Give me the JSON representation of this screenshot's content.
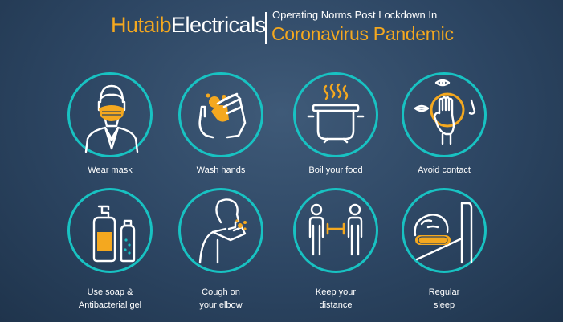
{
  "header": {
    "brand_part1": "Hutaib",
    "brand_part2": "Electricals",
    "subtitle": "Operating Norms Post Lockdown In",
    "subtitle2": "Coronavirus Pandemic"
  },
  "items": [
    {
      "label": "Wear mask",
      "icon": "mask-icon"
    },
    {
      "label": "Wash hands",
      "icon": "wash-hands-icon"
    },
    {
      "label": "Boil your food",
      "icon": "boiling-pot-icon"
    },
    {
      "label": "Avoid contact",
      "icon": "hand-face-icon"
    },
    {
      "label": "Use soap &",
      "label2": "Antibacterial gel",
      "icon": "soap-bottles-icon"
    },
    {
      "label": "Cough on",
      "label2": "your elbow",
      "icon": "cough-elbow-icon"
    },
    {
      "label": "Keep your",
      "label2": "distance",
      "icon": "social-distance-icon"
    },
    {
      "label": "Regular",
      "label2": "sleep",
      "icon": "sleep-icon"
    }
  ],
  "colors": {
    "accent": "#f4a81f",
    "ring": "#18c2c2",
    "background": "#2c4562"
  }
}
